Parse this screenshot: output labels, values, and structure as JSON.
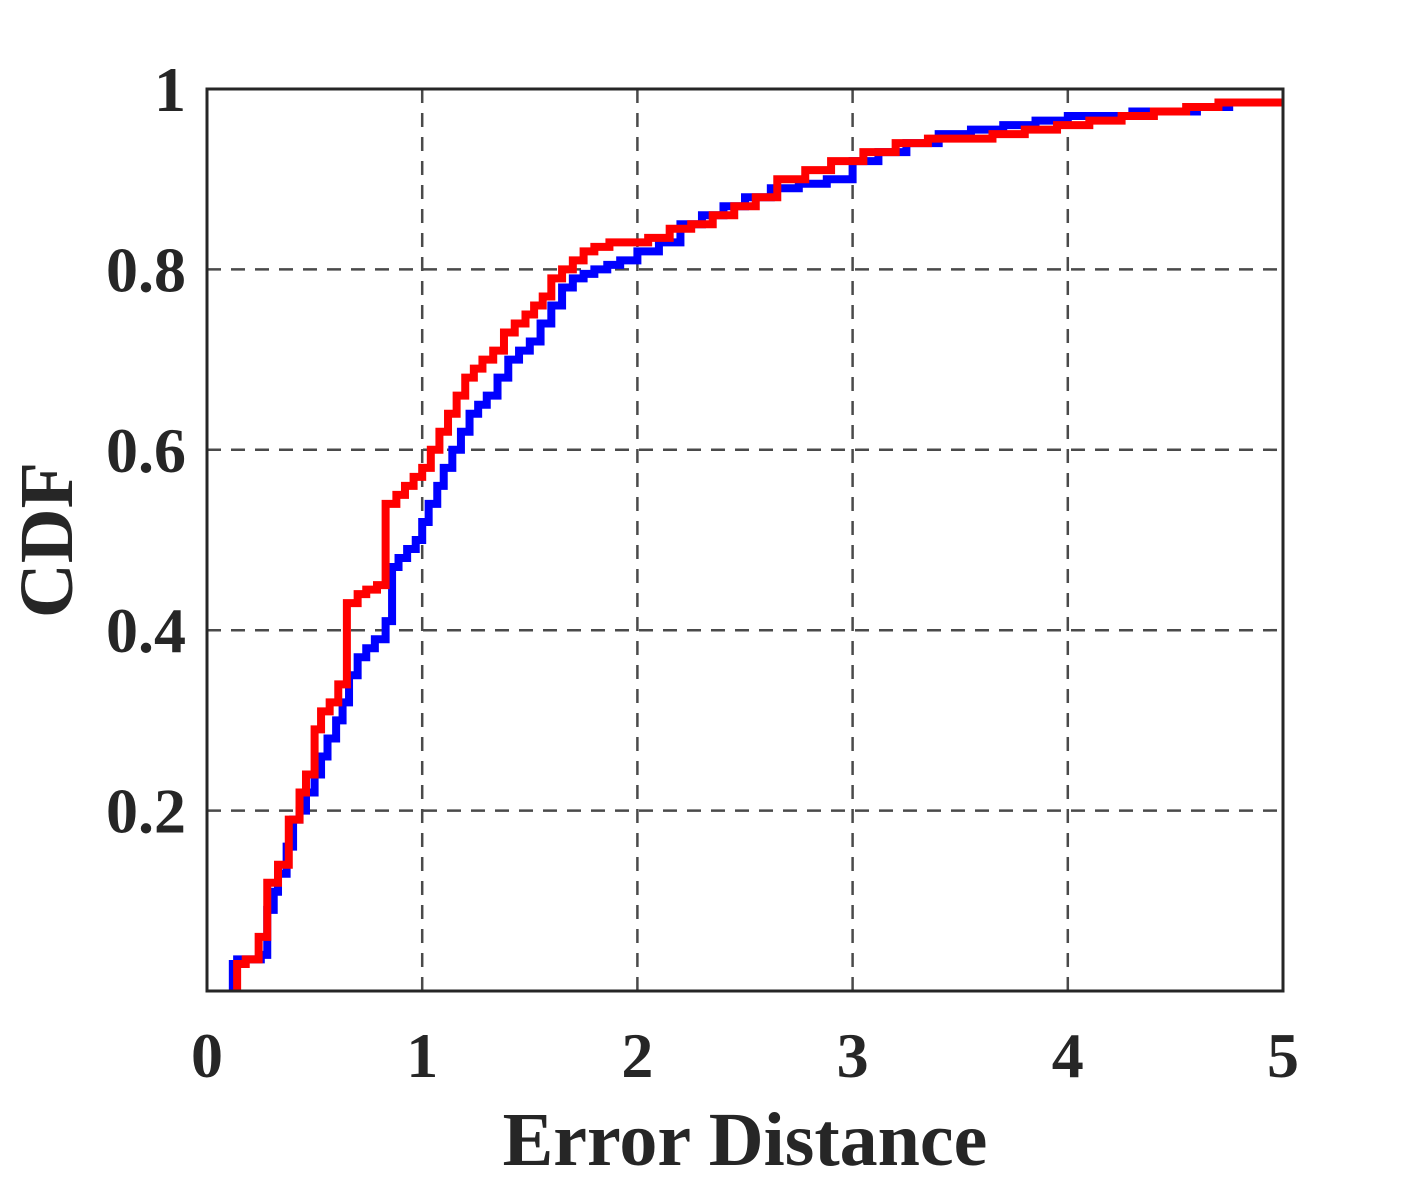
{
  "chart_data": {
    "type": "line",
    "xlabel": "Error Distance",
    "ylabel": "CDF",
    "xlim": [
      0,
      5
    ],
    "ylim": [
      0,
      1
    ],
    "xticks": [
      0,
      1,
      2,
      3,
      4,
      5
    ],
    "xtick_labels": [
      "0",
      "1",
      "2",
      "3",
      "4",
      "5"
    ],
    "yticks": [
      0.2,
      0.4,
      0.6,
      0.8,
      1
    ],
    "ytick_labels": [
      "0.2",
      "0.4",
      "0.6",
      "0.8",
      "1"
    ],
    "grid": true,
    "legend": "none",
    "series": [
      {
        "color": "#0000ff",
        "step": true,
        "x": [
          0.12,
          0.14,
          0.25,
          0.28,
          0.31,
          0.33,
          0.37,
          0.4,
          0.43,
          0.46,
          0.5,
          0.53,
          0.56,
          0.6,
          0.63,
          0.66,
          0.7,
          0.74,
          0.78,
          0.83,
          0.86,
          0.89,
          0.93,
          0.97,
          1.0,
          1.03,
          1.07,
          1.1,
          1.14,
          1.18,
          1.22,
          1.26,
          1.3,
          1.35,
          1.4,
          1.45,
          1.5,
          1.55,
          1.6,
          1.65,
          1.7,
          1.75,
          1.8,
          1.86,
          1.92,
          2.0,
          2.1,
          2.2,
          2.3,
          2.4,
          2.5,
          2.62,
          2.75,
          2.88,
          3.0,
          3.12,
          3.25,
          3.4,
          3.55,
          3.7,
          3.85,
          4.0,
          4.15,
          4.3,
          4.45,
          4.6,
          4.75,
          4.85,
          5.0
        ],
        "y": [
          0.03,
          0.035,
          0.04,
          0.09,
          0.11,
          0.13,
          0.16,
          0.19,
          0.2,
          0.22,
          0.24,
          0.26,
          0.28,
          0.3,
          0.32,
          0.35,
          0.37,
          0.38,
          0.39,
          0.41,
          0.47,
          0.48,
          0.49,
          0.5,
          0.52,
          0.54,
          0.56,
          0.58,
          0.6,
          0.62,
          0.64,
          0.65,
          0.66,
          0.68,
          0.7,
          0.71,
          0.72,
          0.74,
          0.76,
          0.78,
          0.79,
          0.795,
          0.8,
          0.805,
          0.81,
          0.82,
          0.83,
          0.85,
          0.86,
          0.87,
          0.88,
          0.89,
          0.895,
          0.9,
          0.92,
          0.93,
          0.94,
          0.95,
          0.955,
          0.96,
          0.965,
          0.97,
          0.97,
          0.975,
          0.975,
          0.98,
          0.985,
          0.985,
          0.985
        ]
      },
      {
        "color": "#ff0000",
        "step": true,
        "x": [
          0.14,
          0.18,
          0.24,
          0.28,
          0.33,
          0.38,
          0.43,
          0.46,
          0.5,
          0.53,
          0.57,
          0.61,
          0.65,
          0.7,
          0.74,
          0.79,
          0.83,
          0.88,
          0.92,
          0.96,
          1.0,
          1.04,
          1.08,
          1.12,
          1.16,
          1.2,
          1.24,
          1.28,
          1.33,
          1.38,
          1.43,
          1.48,
          1.52,
          1.56,
          1.6,
          1.65,
          1.7,
          1.75,
          1.8,
          1.87,
          1.95,
          2.05,
          2.15,
          2.25,
          2.35,
          2.45,
          2.55,
          2.65,
          2.78,
          2.9,
          3.05,
          3.2,
          3.35,
          3.5,
          3.65,
          3.8,
          3.95,
          4.1,
          4.25,
          4.4,
          4.55,
          4.7,
          4.85,
          5.0
        ],
        "y": [
          0.03,
          0.035,
          0.06,
          0.12,
          0.14,
          0.19,
          0.22,
          0.24,
          0.29,
          0.31,
          0.32,
          0.34,
          0.43,
          0.44,
          0.445,
          0.45,
          0.54,
          0.55,
          0.56,
          0.57,
          0.58,
          0.6,
          0.62,
          0.64,
          0.66,
          0.68,
          0.69,
          0.7,
          0.71,
          0.73,
          0.74,
          0.75,
          0.76,
          0.77,
          0.79,
          0.8,
          0.81,
          0.82,
          0.825,
          0.83,
          0.83,
          0.835,
          0.845,
          0.85,
          0.86,
          0.87,
          0.88,
          0.9,
          0.91,
          0.92,
          0.93,
          0.94,
          0.945,
          0.945,
          0.95,
          0.955,
          0.96,
          0.965,
          0.97,
          0.975,
          0.98,
          0.985,
          0.985,
          0.985
        ]
      }
    ]
  }
}
